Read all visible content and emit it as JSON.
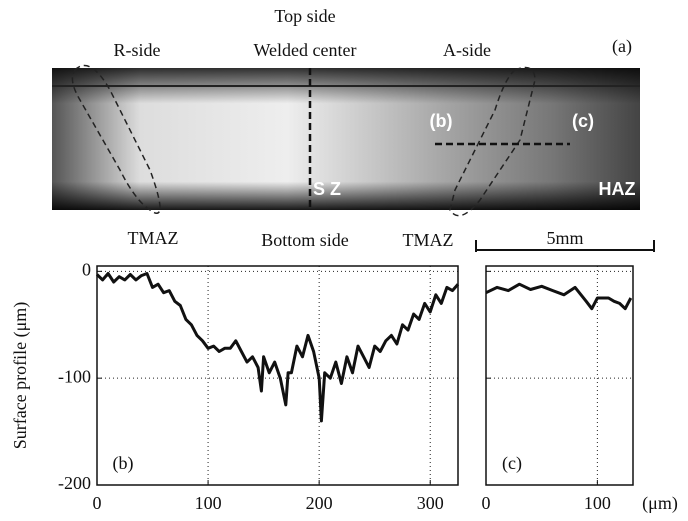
{
  "figure": {
    "top": "Top side",
    "left": "R-side",
    "center": "Welded center",
    "right": "A-side",
    "panel": "(a)",
    "mark_b": "(b)",
    "mark_c": "(c)",
    "sz": "S Z",
    "haz": "HAZ",
    "tmaz_left": "TMAZ",
    "bottom": "Bottom side",
    "tmaz_right": "TMAZ",
    "scale": "5mm"
  },
  "chart_data": [
    {
      "type": "line",
      "annotation": "(b)",
      "ylabel": "Surface profile (μm)",
      "color": "#111",
      "x": [
        0,
        5,
        10,
        15,
        20,
        25,
        30,
        35,
        40,
        45,
        50,
        55,
        60,
        65,
        70,
        75,
        80,
        85,
        90,
        95,
        100,
        105,
        110,
        115,
        120,
        125,
        130,
        135,
        140,
        145,
        148,
        150,
        155,
        160,
        165,
        170,
        172,
        175,
        180,
        185,
        190,
        195,
        200,
        202,
        205,
        210,
        215,
        220,
        225,
        230,
        235,
        240,
        245,
        250,
        255,
        260,
        265,
        270,
        275,
        280,
        285,
        290,
        295,
        300,
        305,
        310,
        315,
        320,
        325
      ],
      "values": [
        -3,
        -8,
        -2,
        -10,
        -5,
        -8,
        -3,
        -8,
        -4,
        -2,
        -15,
        -12,
        -20,
        -18,
        -28,
        -32,
        -45,
        -50,
        -60,
        -65,
        -72,
        -70,
        -75,
        -72,
        -72,
        -65,
        -75,
        -85,
        -80,
        -90,
        -112,
        -80,
        -95,
        -85,
        -100,
        -125,
        -95,
        -95,
        -70,
        -80,
        -60,
        -75,
        -100,
        -140,
        -95,
        -100,
        -85,
        -105,
        -80,
        -95,
        -70,
        -80,
        -90,
        -70,
        -75,
        -65,
        -60,
        -68,
        -50,
        -55,
        -40,
        -45,
        -30,
        -38,
        -22,
        -30,
        -15,
        -18,
        -12
      ],
      "xlim": [
        0,
        325
      ],
      "ylim": [
        -200,
        5
      ],
      "xticks": [
        0,
        100,
        200,
        300
      ],
      "yticks": [
        0,
        -100,
        -200
      ],
      "grid": true,
      "ytick_labels": true
    },
    {
      "type": "line",
      "annotation": "(c)",
      "xlabel": "(μm)",
      "color": "#111",
      "x": [
        0,
        10,
        20,
        30,
        40,
        50,
        60,
        70,
        80,
        90,
        95,
        100,
        110,
        115,
        120,
        125,
        130
      ],
      "values": [
        -20,
        -15,
        -18,
        -12,
        -17,
        -14,
        -18,
        -22,
        -15,
        -28,
        -35,
        -25,
        -25,
        -28,
        -30,
        -35,
        -25
      ],
      "xlim": [
        0,
        132
      ],
      "ylim": [
        -200,
        5
      ],
      "xticks": [
        0,
        100
      ],
      "yticks": [
        0,
        -100,
        -200
      ],
      "grid": true,
      "ytick_labels": false
    }
  ]
}
